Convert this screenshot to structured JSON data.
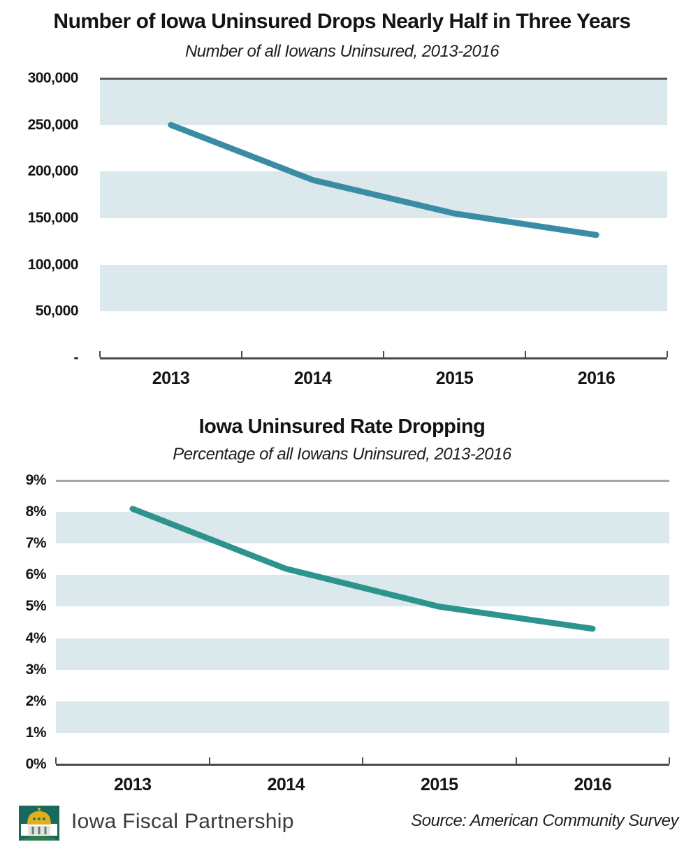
{
  "chart_data": [
    {
      "type": "line",
      "title": "Number of Iowa Uninsured Drops Nearly Half in Three Years",
      "subtitle": "Number of all Iowans Uninsured, 2013-2016",
      "categories": [
        "2013",
        "2014",
        "2015",
        "2016"
      ],
      "values": [
        250000,
        191000,
        155000,
        132000
      ],
      "xlabel": "",
      "ylabel": "",
      "ylim": [
        0,
        300000
      ],
      "ytick_step": 50000,
      "ytick_labels": [
        "-",
        "50,000",
        "100,000",
        "150,000",
        "200,000",
        "250,000",
        "300,000"
      ],
      "bands": [
        [
          250000,
          300000
        ],
        [
          150000,
          200000
        ],
        [
          50000,
          100000
        ]
      ],
      "grid": "top-line-only",
      "legend": "none",
      "line_color": "#3a8ca4",
      "band_color": "#dbe9ec",
      "top_grid_color": "#595959"
    },
    {
      "type": "line",
      "title": "Iowa Uninsured Rate Dropping",
      "subtitle": "Percentage of all Iowans Uninsured, 2013-2016",
      "categories": [
        "2013",
        "2014",
        "2015",
        "2016"
      ],
      "values": [
        8.1,
        6.2,
        5.0,
        4.3
      ],
      "xlabel": "",
      "ylabel": "",
      "ylim": [
        0,
        9
      ],
      "ytick_step": 1,
      "ytick_labels": [
        "0%",
        "1%",
        "2%",
        "3%",
        "4%",
        "5%",
        "6%",
        "7%",
        "8%",
        "9%"
      ],
      "bands": [
        [
          7,
          8
        ],
        [
          5,
          6
        ],
        [
          3,
          4
        ],
        [
          1,
          2
        ]
      ],
      "grid": "top-line-only",
      "legend": "none",
      "line_color": "#2d948d",
      "band_color": "#dbe9ec",
      "top_grid_color": "#a6a6a6"
    }
  ],
  "footer": {
    "brand": "Iowa Fiscal Partnership",
    "source": "Source: American Community Survey",
    "logo_icon": "capitol-dome-icon",
    "logo_colors": {
      "background": "#17695e",
      "dome": "#dfaf1f",
      "hill": "#2e7d4f",
      "band": "#ffffff"
    }
  }
}
